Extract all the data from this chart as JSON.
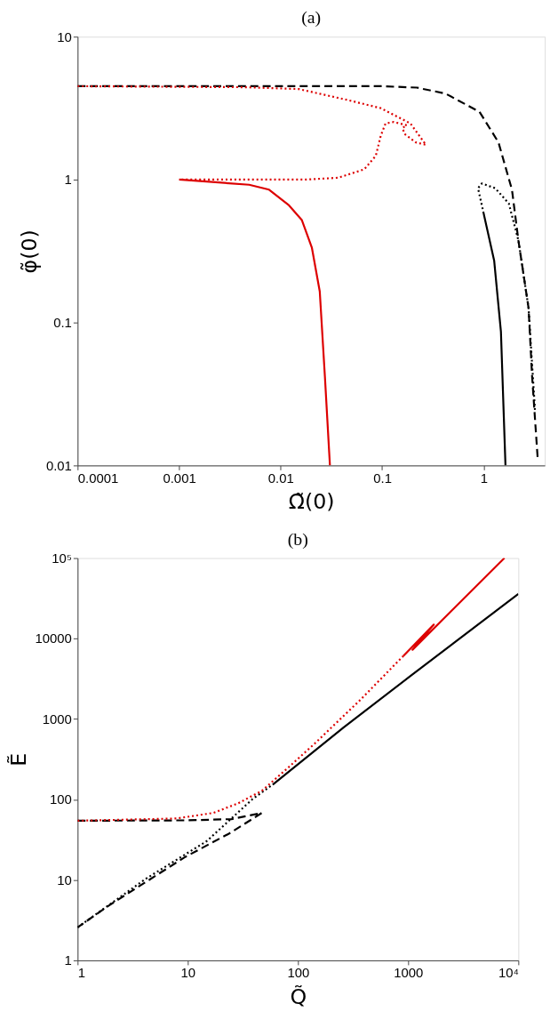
{
  "chart_data": [
    {
      "type": "line",
      "title": "(a)",
      "xlabel": "Ω̃(0)",
      "ylabel": "φ̃(0)",
      "log": "xy",
      "grid": false,
      "legend": false,
      "xlim": [
        0.0001,
        4
      ],
      "xticks": [
        0.0001,
        0.001,
        0.01,
        0.1,
        1
      ],
      "ylim": [
        0.01,
        10
      ],
      "yticks": [
        0.01,
        0.1,
        1,
        10
      ],
      "series": [
        {
          "color": "#000000",
          "line_style": "dashed",
          "x": [
            0.0001,
            0.1,
            0.22,
            0.42,
            0.91,
            1.4,
            1.9,
            2.2,
            2.77,
            3.0,
            3.4
          ],
          "values": [
            4.5,
            4.5,
            4.4,
            4.0,
            2.98,
            1.82,
            0.85,
            0.375,
            0.126,
            0.042,
            0.0114
          ]
        },
        {
          "color": "#dd0000",
          "line_style": "dotted",
          "x": [
            0.0001,
            0.0043,
            0.0151,
            0.046,
            0.097,
            0.19,
            0.27,
            0.215,
            0.166,
            0.159,
            0.175,
            0.13,
            0.108,
            0.097,
            0.0867,
            0.0668,
            0.0369,
            0.0175,
            0.001
          ],
          "values": [
            4.5,
            4.43,
            4.3,
            3.6,
            3.16,
            2.47,
            1.75,
            1.82,
            2.09,
            2.3,
            2.4,
            2.53,
            2.47,
            2.03,
            1.47,
            1.18,
            1.03,
            1.0,
            1.0
          ]
        },
        {
          "color": "#dd0000",
          "line_style": "solid",
          "x": [
            0.001,
            0.0049,
            0.0077,
            0.0121,
            0.0162,
            0.0203,
            0.0243,
            0.0273,
            0.0306
          ],
          "values": [
            1.0,
            0.92,
            0.85,
            0.66,
            0.52,
            0.335,
            0.165,
            0.042,
            0.01
          ]
        },
        {
          "color": "#000000",
          "line_style": "dotted",
          "x": [
            1.0,
            0.88,
            0.96,
            1.3,
            1.77,
            2.2,
            2.77,
            3.2
          ],
          "values": [
            0.58,
            0.87,
            0.94,
            0.87,
            0.68,
            0.375,
            0.126,
            0.0245
          ]
        },
        {
          "color": "#000000",
          "line_style": "solid",
          "x": [
            1.0,
            1.27,
            1.48,
            1.64
          ],
          "values": [
            0.58,
            0.27,
            0.086,
            0.01
          ]
        }
      ]
    },
    {
      "type": "line",
      "title": "(b)",
      "xlabel": "Q̃",
      "ylabel": "Ẽ",
      "log": "xy",
      "grid": false,
      "legend": false,
      "xlim": [
        1,
        10000
      ],
      "xticks": [
        1,
        10,
        100,
        1000,
        {
          "value": 10000,
          "label": "10⁴"
        }
      ],
      "ylim": [
        1,
        100000
      ],
      "yticks": [
        1,
        10,
        100,
        1000,
        10000,
        {
          "value": 100000,
          "label": "10⁵"
        }
      ],
      "series": [
        {
          "color": "#000000",
          "line_style": "dashed",
          "x": [
            1,
            10,
            25,
            47,
            24,
            9.55,
            4.15,
            1.92,
            1
          ],
          "values": [
            54.4,
            55,
            57,
            68,
            38,
            19.4,
            9.4,
            4.8,
            2.57
          ]
        },
        {
          "color": "#000000",
          "line_style": "dotted",
          "x": [
            1,
            4.15,
            14.9,
            39,
            59
          ],
          "values": [
            2.57,
            10.3,
            30.4,
            102,
            153
          ]
        },
        {
          "color": "#000000",
          "line_style": "solid",
          "x": [
            59,
            259,
            1000,
            10000
          ],
          "values": [
            153,
            783,
            3250,
            35900
          ]
        },
        {
          "color": "#dd0000",
          "line_style": "dotted",
          "x": [
            1,
            7.9,
            17,
            28.4,
            47,
            79,
            141,
            368,
            903
          ],
          "values": [
            54.4,
            58,
            68,
            89,
            128,
            239,
            491,
            1727,
            6070
          ]
        },
        {
          "color": "#dd0000",
          "line_style": "solid",
          "x": [
            903,
            1710,
            1096,
            7480
          ],
          "values": [
            6070,
            14900,
            7260,
            100000
          ]
        }
      ]
    }
  ]
}
